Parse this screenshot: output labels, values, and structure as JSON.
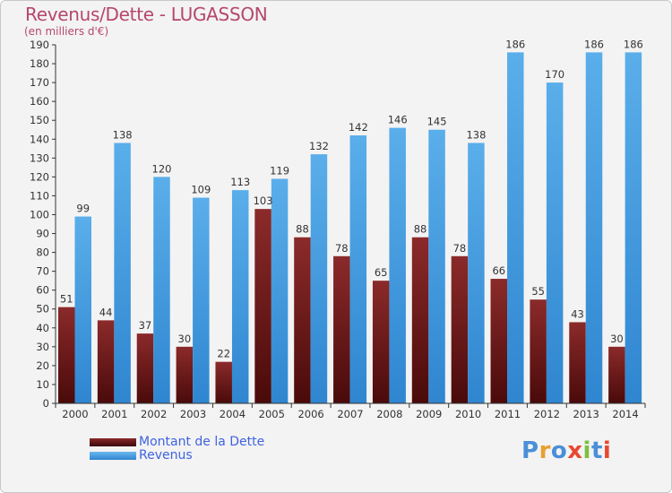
{
  "header": {
    "title": "Revenus/Dette - LUGASSON",
    "subtitle": "(en milliers d'€)"
  },
  "legend": {
    "items": [
      {
        "label": "Montant de la Dette",
        "color": "#8b1a1a"
      },
      {
        "label": "Revenus",
        "color": "#3a9ee6"
      }
    ]
  },
  "logo": {
    "text": "Proxiti",
    "letter_colors": [
      "#4a8fd8",
      "#e8a030",
      "#4a8fd8",
      "#e84830",
      "#7cc040",
      "#4a8fd8",
      "#e84830"
    ]
  },
  "colors": {
    "dette_top": "#8b2a2a",
    "dette_bottom": "#4a0a0a",
    "revenus_top": "#5aaeea",
    "revenus_bottom": "#2f86d0",
    "title_color": "#b5476b",
    "legend_text": "#3f63e0"
  },
  "chart_data": {
    "type": "bar",
    "title": "Revenus/Dette - LUGASSON",
    "subtitle": "(en milliers d'€)",
    "categories": [
      "2000",
      "2001",
      "2002",
      "2003",
      "2004",
      "2005",
      "2006",
      "2007",
      "2008",
      "2009",
      "2010",
      "2011",
      "2012",
      "2013",
      "2014"
    ],
    "series": [
      {
        "name": "Montant de la Dette",
        "values": [
          51,
          44,
          37,
          30,
          22,
          103,
          88,
          78,
          65,
          88,
          78,
          66,
          55,
          43,
          30
        ]
      },
      {
        "name": "Revenus",
        "values": [
          99,
          138,
          120,
          109,
          113,
          119,
          132,
          142,
          146,
          145,
          138,
          186,
          170,
          186,
          186
        ]
      }
    ],
    "ylim": [
      0,
      190
    ],
    "ytick_step": 10,
    "grid": false,
    "legend_position": "bottom-left"
  }
}
